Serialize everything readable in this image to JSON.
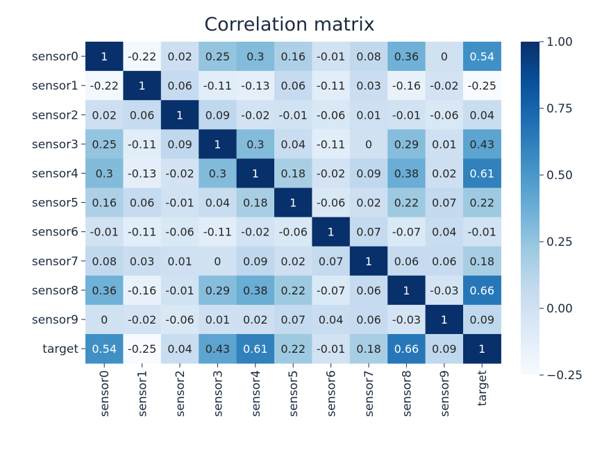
{
  "chart_data": {
    "type": "heatmap",
    "title": "Correlation matrix",
    "xlabel": "",
    "ylabel": "",
    "row_labels": [
      "sensor0",
      "sensor1",
      "sensor2",
      "sensor3",
      "sensor4",
      "sensor5",
      "sensor6",
      "sensor7",
      "sensor8",
      "sensor9",
      "target"
    ],
    "col_labels": [
      "sensor0",
      "sensor1",
      "sensor2",
      "sensor3",
      "sensor4",
      "sensor5",
      "sensor6",
      "sensor7",
      "sensor8",
      "sensor9",
      "target"
    ],
    "values": [
      [
        1,
        -0.22,
        0.02,
        0.25,
        0.3,
        0.16,
        -0.01,
        0.08,
        0.36,
        0,
        0.54
      ],
      [
        -0.22,
        1,
        0.06,
        -0.11,
        -0.13,
        0.06,
        -0.11,
        0.03,
        -0.16,
        -0.02,
        -0.25
      ],
      [
        0.02,
        0.06,
        1,
        0.09,
        -0.02,
        -0.01,
        -0.06,
        0.01,
        -0.01,
        -0.06,
        0.04
      ],
      [
        0.25,
        -0.11,
        0.09,
        1,
        0.3,
        0.04,
        -0.11,
        0,
        0.29,
        0.01,
        0.43
      ],
      [
        0.3,
        -0.13,
        -0.02,
        0.3,
        1,
        0.18,
        -0.02,
        0.09,
        0.38,
        0.02,
        0.61
      ],
      [
        0.16,
        0.06,
        -0.01,
        0.04,
        0.18,
        1,
        -0.06,
        0.02,
        0.22,
        0.07,
        0.22
      ],
      [
        -0.01,
        -0.11,
        -0.06,
        -0.11,
        -0.02,
        -0.06,
        1,
        0.07,
        -0.07,
        0.04,
        -0.01
      ],
      [
        0.08,
        0.03,
        0.01,
        0,
        0.09,
        0.02,
        0.07,
        1,
        0.06,
        0.06,
        0.18
      ],
      [
        0.36,
        -0.16,
        -0.01,
        0.29,
        0.38,
        0.22,
        -0.07,
        0.06,
        1,
        -0.03,
        0.66
      ],
      [
        0,
        -0.02,
        -0.06,
        0.01,
        0.02,
        0.07,
        0.04,
        0.06,
        -0.03,
        1,
        0.09
      ],
      [
        0.54,
        -0.25,
        0.04,
        0.43,
        0.61,
        0.22,
        -0.01,
        0.18,
        0.66,
        0.09,
        1
      ]
    ],
    "colorbar": {
      "min": -0.25,
      "max": 1.0,
      "ticks": [
        -0.25,
        0.0,
        0.25,
        0.5,
        0.75,
        1.0
      ],
      "tick_labels": [
        "−0.25",
        "0.00",
        "0.25",
        "0.50",
        "0.75",
        "1.00"
      ]
    },
    "colormap": "Blues",
    "colormap_stops": [
      "#f7fbff",
      "#deebf7",
      "#c6dbef",
      "#9ecae1",
      "#6baed6",
      "#4292c6",
      "#2171b5",
      "#08519c",
      "#08306b"
    ],
    "annotation_text_colors": {
      "dark": "#262626",
      "light": "#ffffff"
    },
    "text_color": "#1b2a3f",
    "grid": false,
    "legend": "colorbar-right"
  }
}
